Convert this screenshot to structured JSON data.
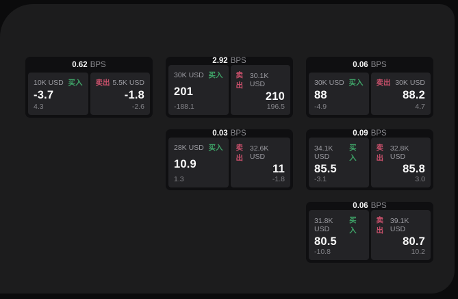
{
  "labels": {
    "bps": "BPS",
    "buy": "买入",
    "sell": "卖出"
  },
  "colors": {
    "buy": "#3fa468",
    "sell": "#c9506b",
    "panel_bg": "#1c1c1d",
    "page_bg": "#0b0b0c",
    "card_bg": "#0f0f11",
    "tile_bg": "#232326"
  },
  "cards": [
    {
      "bps": "0.62",
      "row": 1,
      "col": 1,
      "buy": {
        "amount": "10K USD",
        "price": "-3.7",
        "delta": "4.3"
      },
      "sell": {
        "amount": "5.5K USD",
        "price": "-1.8",
        "delta": "-2.6"
      }
    },
    {
      "bps": "2.92",
      "row": 1,
      "col": 2,
      "buy": {
        "amount": "30K USD",
        "price": "201",
        "delta": "-188.1"
      },
      "sell": {
        "amount": "30.1K USD",
        "price": "210",
        "delta": "196.5"
      }
    },
    {
      "bps": "0.06",
      "row": 1,
      "col": 3,
      "buy": {
        "amount": "30K USD",
        "price": "88",
        "delta": "-4.9"
      },
      "sell": {
        "amount": "30K USD",
        "price": "88.2",
        "delta": "4.7"
      }
    },
    {
      "bps": "0.03",
      "row": 2,
      "col": 2,
      "buy": {
        "amount": "28K USD",
        "price": "10.9",
        "delta": "1.3"
      },
      "sell": {
        "amount": "32.6K USD",
        "price": "11",
        "delta": "-1.8"
      }
    },
    {
      "bps": "0.09",
      "row": 2,
      "col": 3,
      "buy": {
        "amount": "34.1K USD",
        "price": "85.5",
        "delta": "-3.1"
      },
      "sell": {
        "amount": "32.8K USD",
        "price": "85.8",
        "delta": "3.0"
      }
    },
    {
      "bps": "0.06",
      "row": 3,
      "col": 3,
      "buy": {
        "amount": "31.8K USD",
        "price": "80.5",
        "delta": "-10.8"
      },
      "sell": {
        "amount": "39.1K USD",
        "price": "80.7",
        "delta": "10.2"
      }
    }
  ]
}
